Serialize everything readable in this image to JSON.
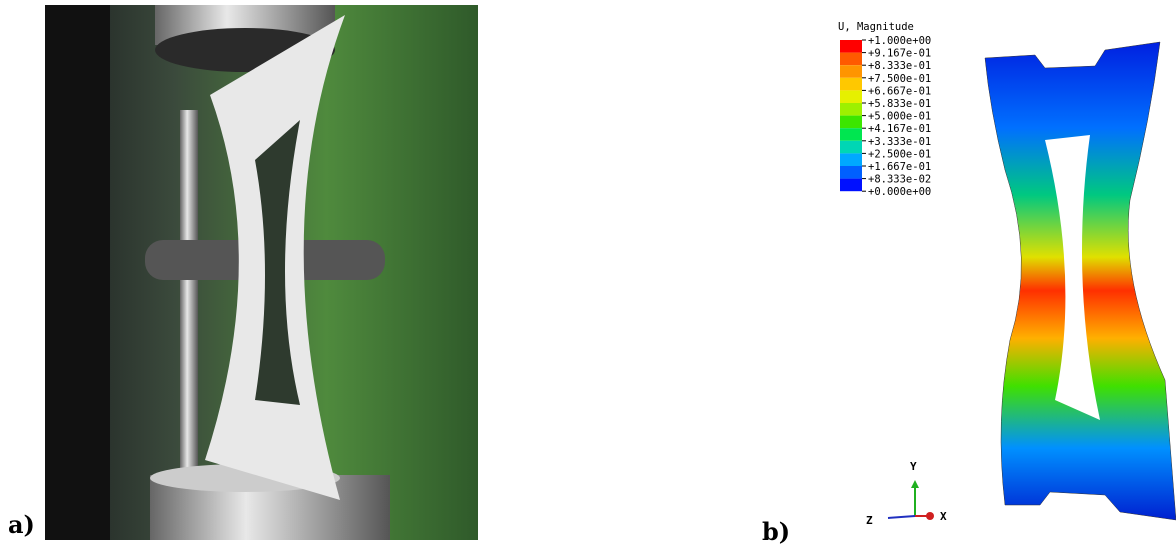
{
  "panels": {
    "a": "a)",
    "b": "b)"
  },
  "legend": {
    "title": "U, Magnitude",
    "labels": [
      "+1.000e+00",
      "+9.167e-01",
      "+8.333e-01",
      "+7.500e-01",
      "+6.667e-01",
      "+5.833e-01",
      "+5.000e-01",
      "+4.167e-01",
      "+3.333e-01",
      "+2.500e-01",
      "+1.667e-01",
      "+8.333e-02",
      "+0.000e+00"
    ],
    "colors": [
      "#ff0000",
      "#ff5a00",
      "#ff9500",
      "#ffc800",
      "#e6f000",
      "#9ef000",
      "#3ce600",
      "#00e650",
      "#00d6b4",
      "#00a8ff",
      "#0060ff",
      "#0010ff"
    ]
  },
  "triad": {
    "y": "Y",
    "z": "Z",
    "x": "X"
  }
}
